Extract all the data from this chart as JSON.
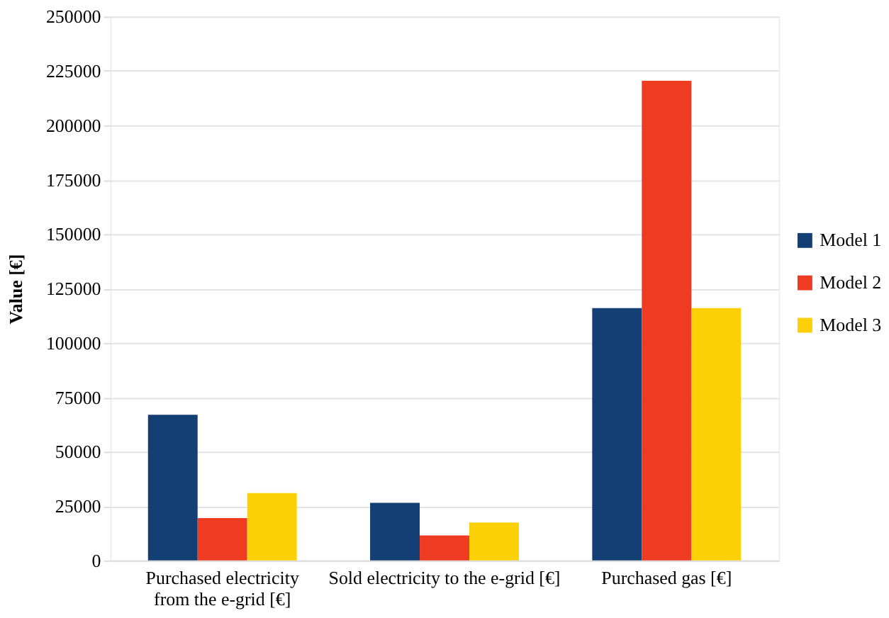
{
  "chart_data": {
    "type": "bar",
    "ylabel": "Value  [€]",
    "categories": [
      "Purchased electricity\nfrom the e-grid [€]",
      "Sold electricity to the e-grid [€]",
      "Purchased  gas [€]"
    ],
    "series": [
      {
        "name": "Model 1",
        "color": "#133f74",
        "values": [
          67000,
          26500,
          116000
        ]
      },
      {
        "name": "Model 2",
        "color": "#ee3b22",
        "values": [
          19500,
          11500,
          220500
        ]
      },
      {
        "name": "Model 3",
        "color": "#fbd006",
        "values": [
          31000,
          17500,
          116000
        ]
      }
    ],
    "ylim": [
      0,
      250000
    ],
    "yticks": [
      0,
      25000,
      50000,
      75000,
      100000,
      125000,
      150000,
      175000,
      200000,
      225000,
      250000
    ],
    "grid": "y",
    "legend": "right"
  }
}
